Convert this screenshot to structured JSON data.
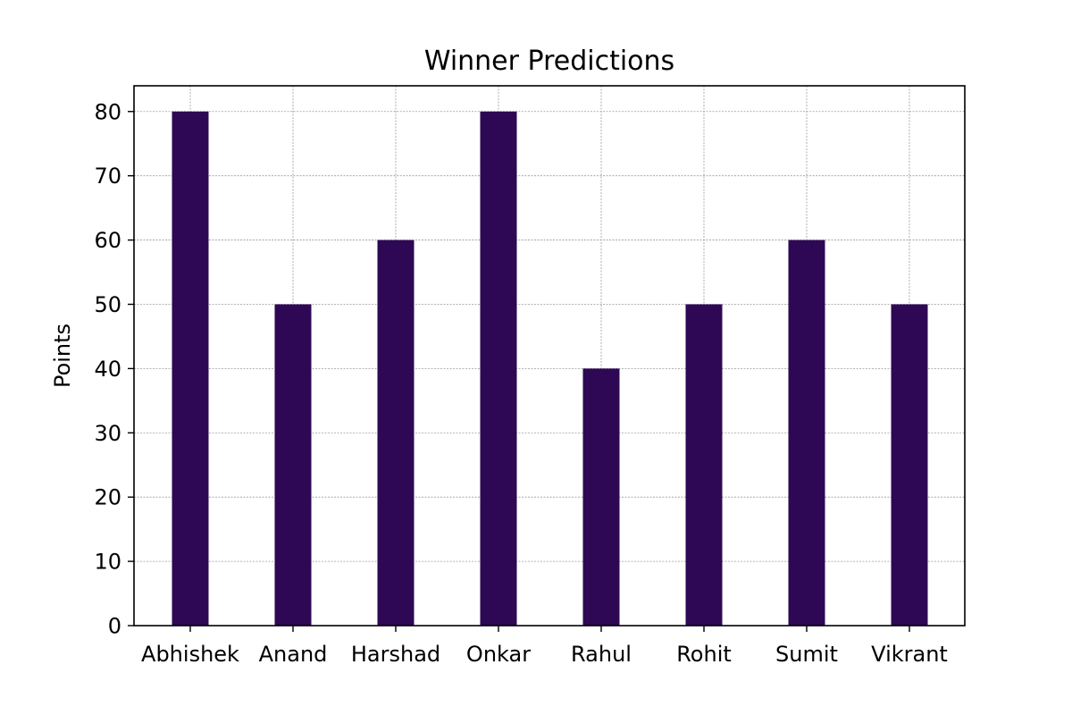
{
  "chart_data": {
    "type": "bar",
    "title": "Winner Predictions",
    "xlabel": "",
    "ylabel": "Points",
    "categories": [
      "Abhishek",
      "Anand",
      "Harshad",
      "Onkar",
      "Rahul",
      "Rohit",
      "Sumit",
      "Vikrant"
    ],
    "values": [
      80,
      50,
      60,
      80,
      40,
      50,
      60,
      50
    ],
    "ylim": [
      0,
      84
    ],
    "yticks": [
      0,
      10,
      20,
      30,
      40,
      50,
      60,
      70,
      80
    ],
    "grid": true,
    "legend": "none",
    "colors": {
      "bar": "#2e0854",
      "grid": "#9a9a9a",
      "axis": "#000000",
      "background": "#ffffff"
    }
  }
}
